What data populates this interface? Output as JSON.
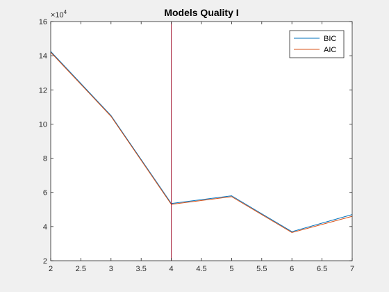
{
  "chart_data": {
    "type": "line",
    "title": "Models Quality I",
    "xlabel": "",
    "ylabel": "",
    "xlim": [
      2,
      7
    ],
    "ylim": [
      2,
      16
    ],
    "x_ticks": [
      "2",
      "2.5",
      "3",
      "3.5",
      "4",
      "4.5",
      "5",
      "5.5",
      "6",
      "6.5",
      "7"
    ],
    "y_ticks": [
      "2",
      "4",
      "6",
      "8",
      "10",
      "12",
      "14",
      "16"
    ],
    "y_exponent_label": "×10",
    "y_exponent_power": "4",
    "x": [
      2,
      3,
      4,
      5,
      6,
      7
    ],
    "series": [
      {
        "name": "BIC",
        "color": "#0072BD",
        "values": [
          14.25,
          10.5,
          5.35,
          5.8,
          3.7,
          4.7
        ]
      },
      {
        "name": "AIC",
        "color": "#D95319",
        "values": [
          14.2,
          10.45,
          5.3,
          5.75,
          3.65,
          4.6
        ]
      }
    ],
    "vertical_line": {
      "x": 4,
      "color": "#A2142F"
    },
    "legend_location": "top-right",
    "grid": false
  }
}
